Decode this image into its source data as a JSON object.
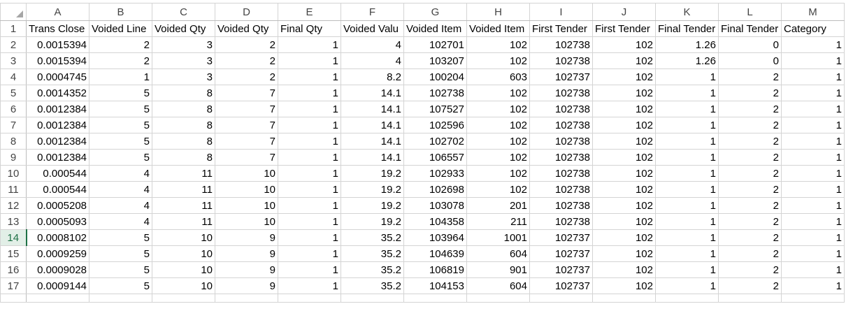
{
  "columns": [
    "A",
    "B",
    "C",
    "D",
    "E",
    "F",
    "G",
    "H",
    "I",
    "J",
    "K",
    "L",
    "M"
  ],
  "selected_row": "14",
  "headers": [
    "Trans Close",
    "Voided Line",
    "Voided Qty",
    "Voided Qty",
    "Final Qty",
    "Voided Valu",
    "Voided Item",
    "Voided Item",
    "First Tender",
    "First Tender",
    "Final Tender",
    "Final Tender",
    "Category"
  ],
  "rows": [
    {
      "num": "2",
      "cells": [
        "0.0015394",
        "2",
        "3",
        "2",
        "1",
        "4",
        "102701",
        "102",
        "102738",
        "102",
        "1.26",
        "0",
        "1"
      ]
    },
    {
      "num": "3",
      "cells": [
        "0.0015394",
        "2",
        "3",
        "2",
        "1",
        "4",
        "103207",
        "102",
        "102738",
        "102",
        "1.26",
        "0",
        "1"
      ]
    },
    {
      "num": "4",
      "cells": [
        "0.0004745",
        "1",
        "3",
        "2",
        "1",
        "8.2",
        "100204",
        "603",
        "102737",
        "102",
        "1",
        "2",
        "1"
      ]
    },
    {
      "num": "5",
      "cells": [
        "0.0014352",
        "5",
        "8",
        "7",
        "1",
        "14.1",
        "102738",
        "102",
        "102738",
        "102",
        "1",
        "2",
        "1"
      ]
    },
    {
      "num": "6",
      "cells": [
        "0.0012384",
        "5",
        "8",
        "7",
        "1",
        "14.1",
        "107527",
        "102",
        "102738",
        "102",
        "1",
        "2",
        "1"
      ]
    },
    {
      "num": "7",
      "cells": [
        "0.0012384",
        "5",
        "8",
        "7",
        "1",
        "14.1",
        "102596",
        "102",
        "102738",
        "102",
        "1",
        "2",
        "1"
      ]
    },
    {
      "num": "8",
      "cells": [
        "0.0012384",
        "5",
        "8",
        "7",
        "1",
        "14.1",
        "102702",
        "102",
        "102738",
        "102",
        "1",
        "2",
        "1"
      ]
    },
    {
      "num": "9",
      "cells": [
        "0.0012384",
        "5",
        "8",
        "7",
        "1",
        "14.1",
        "106557",
        "102",
        "102738",
        "102",
        "1",
        "2",
        "1"
      ]
    },
    {
      "num": "10",
      "cells": [
        "0.000544",
        "4",
        "11",
        "10",
        "1",
        "19.2",
        "102933",
        "102",
        "102738",
        "102",
        "1",
        "2",
        "1"
      ]
    },
    {
      "num": "11",
      "cells": [
        "0.000544",
        "4",
        "11",
        "10",
        "1",
        "19.2",
        "102698",
        "102",
        "102738",
        "102",
        "1",
        "2",
        "1"
      ]
    },
    {
      "num": "12",
      "cells": [
        "0.0005208",
        "4",
        "11",
        "10",
        "1",
        "19.2",
        "103078",
        "201",
        "102738",
        "102",
        "1",
        "2",
        "1"
      ]
    },
    {
      "num": "13",
      "cells": [
        "0.0005093",
        "4",
        "11",
        "10",
        "1",
        "19.2",
        "104358",
        "211",
        "102738",
        "102",
        "1",
        "2",
        "1"
      ]
    },
    {
      "num": "14",
      "cells": [
        "0.0008102",
        "5",
        "10",
        "9",
        "1",
        "35.2",
        "103964",
        "1001",
        "102737",
        "102",
        "1",
        "2",
        "1"
      ]
    },
    {
      "num": "15",
      "cells": [
        "0.0009259",
        "5",
        "10",
        "9",
        "1",
        "35.2",
        "104639",
        "604",
        "102737",
        "102",
        "1",
        "2",
        "1"
      ]
    },
    {
      "num": "16",
      "cells": [
        "0.0009028",
        "5",
        "10",
        "9",
        "1",
        "35.2",
        "106819",
        "901",
        "102737",
        "102",
        "1",
        "2",
        "1"
      ]
    },
    {
      "num": "17",
      "cells": [
        "0.0009144",
        "5",
        "10",
        "9",
        "1",
        "35.2",
        "104153",
        "604",
        "102737",
        "102",
        "1",
        "2",
        "1"
      ]
    }
  ]
}
